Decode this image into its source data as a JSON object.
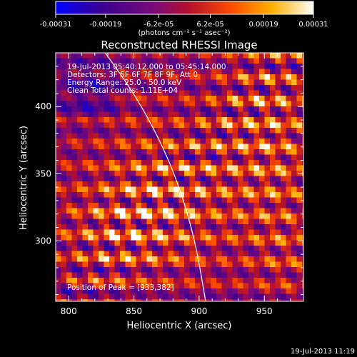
{
  "chart_data": {
    "type": "heatmap",
    "title": "Reconstructed RHESSI Image",
    "xlabel": "Heliocentric X (arcsec)",
    "ylabel": "Heliocentric Y (arcsec)",
    "xlim": [
      790,
      980
    ],
    "ylim": [
      255,
      440
    ],
    "x_ticks": [
      800,
      850,
      900,
      950
    ],
    "y_ticks": [
      300,
      350,
      400
    ],
    "colorbar": {
      "range": [
        -0.00031,
        0.00031
      ],
      "tick_values": [
        -0.00031,
        -0.00019,
        -6.2e-05,
        6.2e-05,
        0.00019,
        0.00031
      ],
      "tick_labels": [
        "-0.00031",
        "-0.00019",
        "-6.2e-05",
        "6.2e-05",
        "0.00019",
        "0.00031"
      ],
      "label": "(photons cm⁻² s⁻¹ asec⁻²)",
      "colors": [
        "#0000ff",
        "#4b0082",
        "#8b008b",
        "#c8102e",
        "#ff6a00",
        "#ffd700",
        "#ffffff"
      ]
    },
    "annotations": {
      "time_range": "19-Jul-2013 05:40:12.000 to 05:45:14.000",
      "detectors": "Detectors: 3F 5F 6F 7F 8F 9F, Att 0",
      "energy_range": "Energy Range: 25.0 - 50.0 keV",
      "clean_counts": "Clean     Total counts: 1.11E+04",
      "peak_position": "Position of Peak = [933,382]"
    },
    "peak": [
      933,
      382
    ],
    "limb_curve": [
      [
        828,
        440
      ],
      [
        850,
        410
      ],
      [
        870,
        375
      ],
      [
        885,
        340
      ],
      [
        897,
        300
      ],
      [
        905,
        255
      ]
    ]
  },
  "footer": {
    "timestamp": "19-Jul-2013 11:19"
  }
}
